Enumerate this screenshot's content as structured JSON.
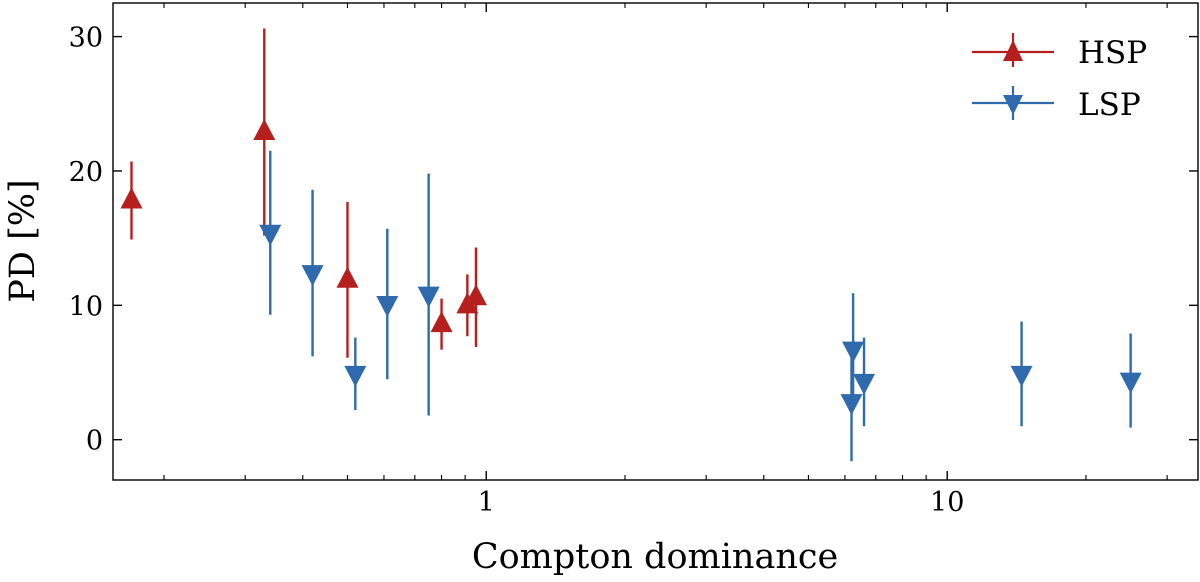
{
  "chart_data": {
    "type": "scatter",
    "title": "",
    "xlabel": "Compton dominance",
    "ylabel": "PD [%]",
    "xscale": "log",
    "xlim": [
      0.155,
      35
    ],
    "ylim": [
      -3,
      32.5
    ],
    "x_major_ticks": [
      1,
      10
    ],
    "x_tick_labels": [
      "1",
      "10"
    ],
    "y_ticks": [
      0,
      10,
      20,
      30
    ],
    "y_tick_labels": [
      "0",
      "10",
      "20",
      "30"
    ],
    "grid": false,
    "legend_position": "top-right",
    "series": [
      {
        "name": "HSP",
        "marker": "triangle-up",
        "color": "#b5201e",
        "points": [
          {
            "x": 0.17,
            "y": 17.8,
            "err": 2.9
          },
          {
            "x": 0.33,
            "y": 22.9,
            "err": 7.7
          },
          {
            "x": 0.5,
            "y": 11.9,
            "err": 5.8
          },
          {
            "x": 0.8,
            "y": 8.6,
            "err": 1.9
          },
          {
            "x": 0.91,
            "y": 10.0,
            "err": 2.3
          },
          {
            "x": 0.95,
            "y": 10.6,
            "err": 3.7
          }
        ]
      },
      {
        "name": "LSP",
        "marker": "triangle-down",
        "color": "#2f6aac",
        "points": [
          {
            "x": 0.34,
            "y": 15.4,
            "err": 6.1
          },
          {
            "x": 0.42,
            "y": 12.4,
            "err": 6.2
          },
          {
            "x": 0.52,
            "y": 4.9,
            "err": 2.7
          },
          {
            "x": 0.61,
            "y": 10.1,
            "err": 5.6
          },
          {
            "x": 0.75,
            "y": 10.8,
            "err": 9.0
          },
          {
            "x": 6.2,
            "y": 2.8,
            "err": 4.4
          },
          {
            "x": 6.25,
            "y": 6.7,
            "err": 4.2
          },
          {
            "x": 6.6,
            "y": 4.3,
            "err": 3.3
          },
          {
            "x": 14.5,
            "y": 4.9,
            "err": 3.9
          },
          {
            "x": 25.0,
            "y": 4.4,
            "err": 3.5
          }
        ]
      }
    ]
  }
}
